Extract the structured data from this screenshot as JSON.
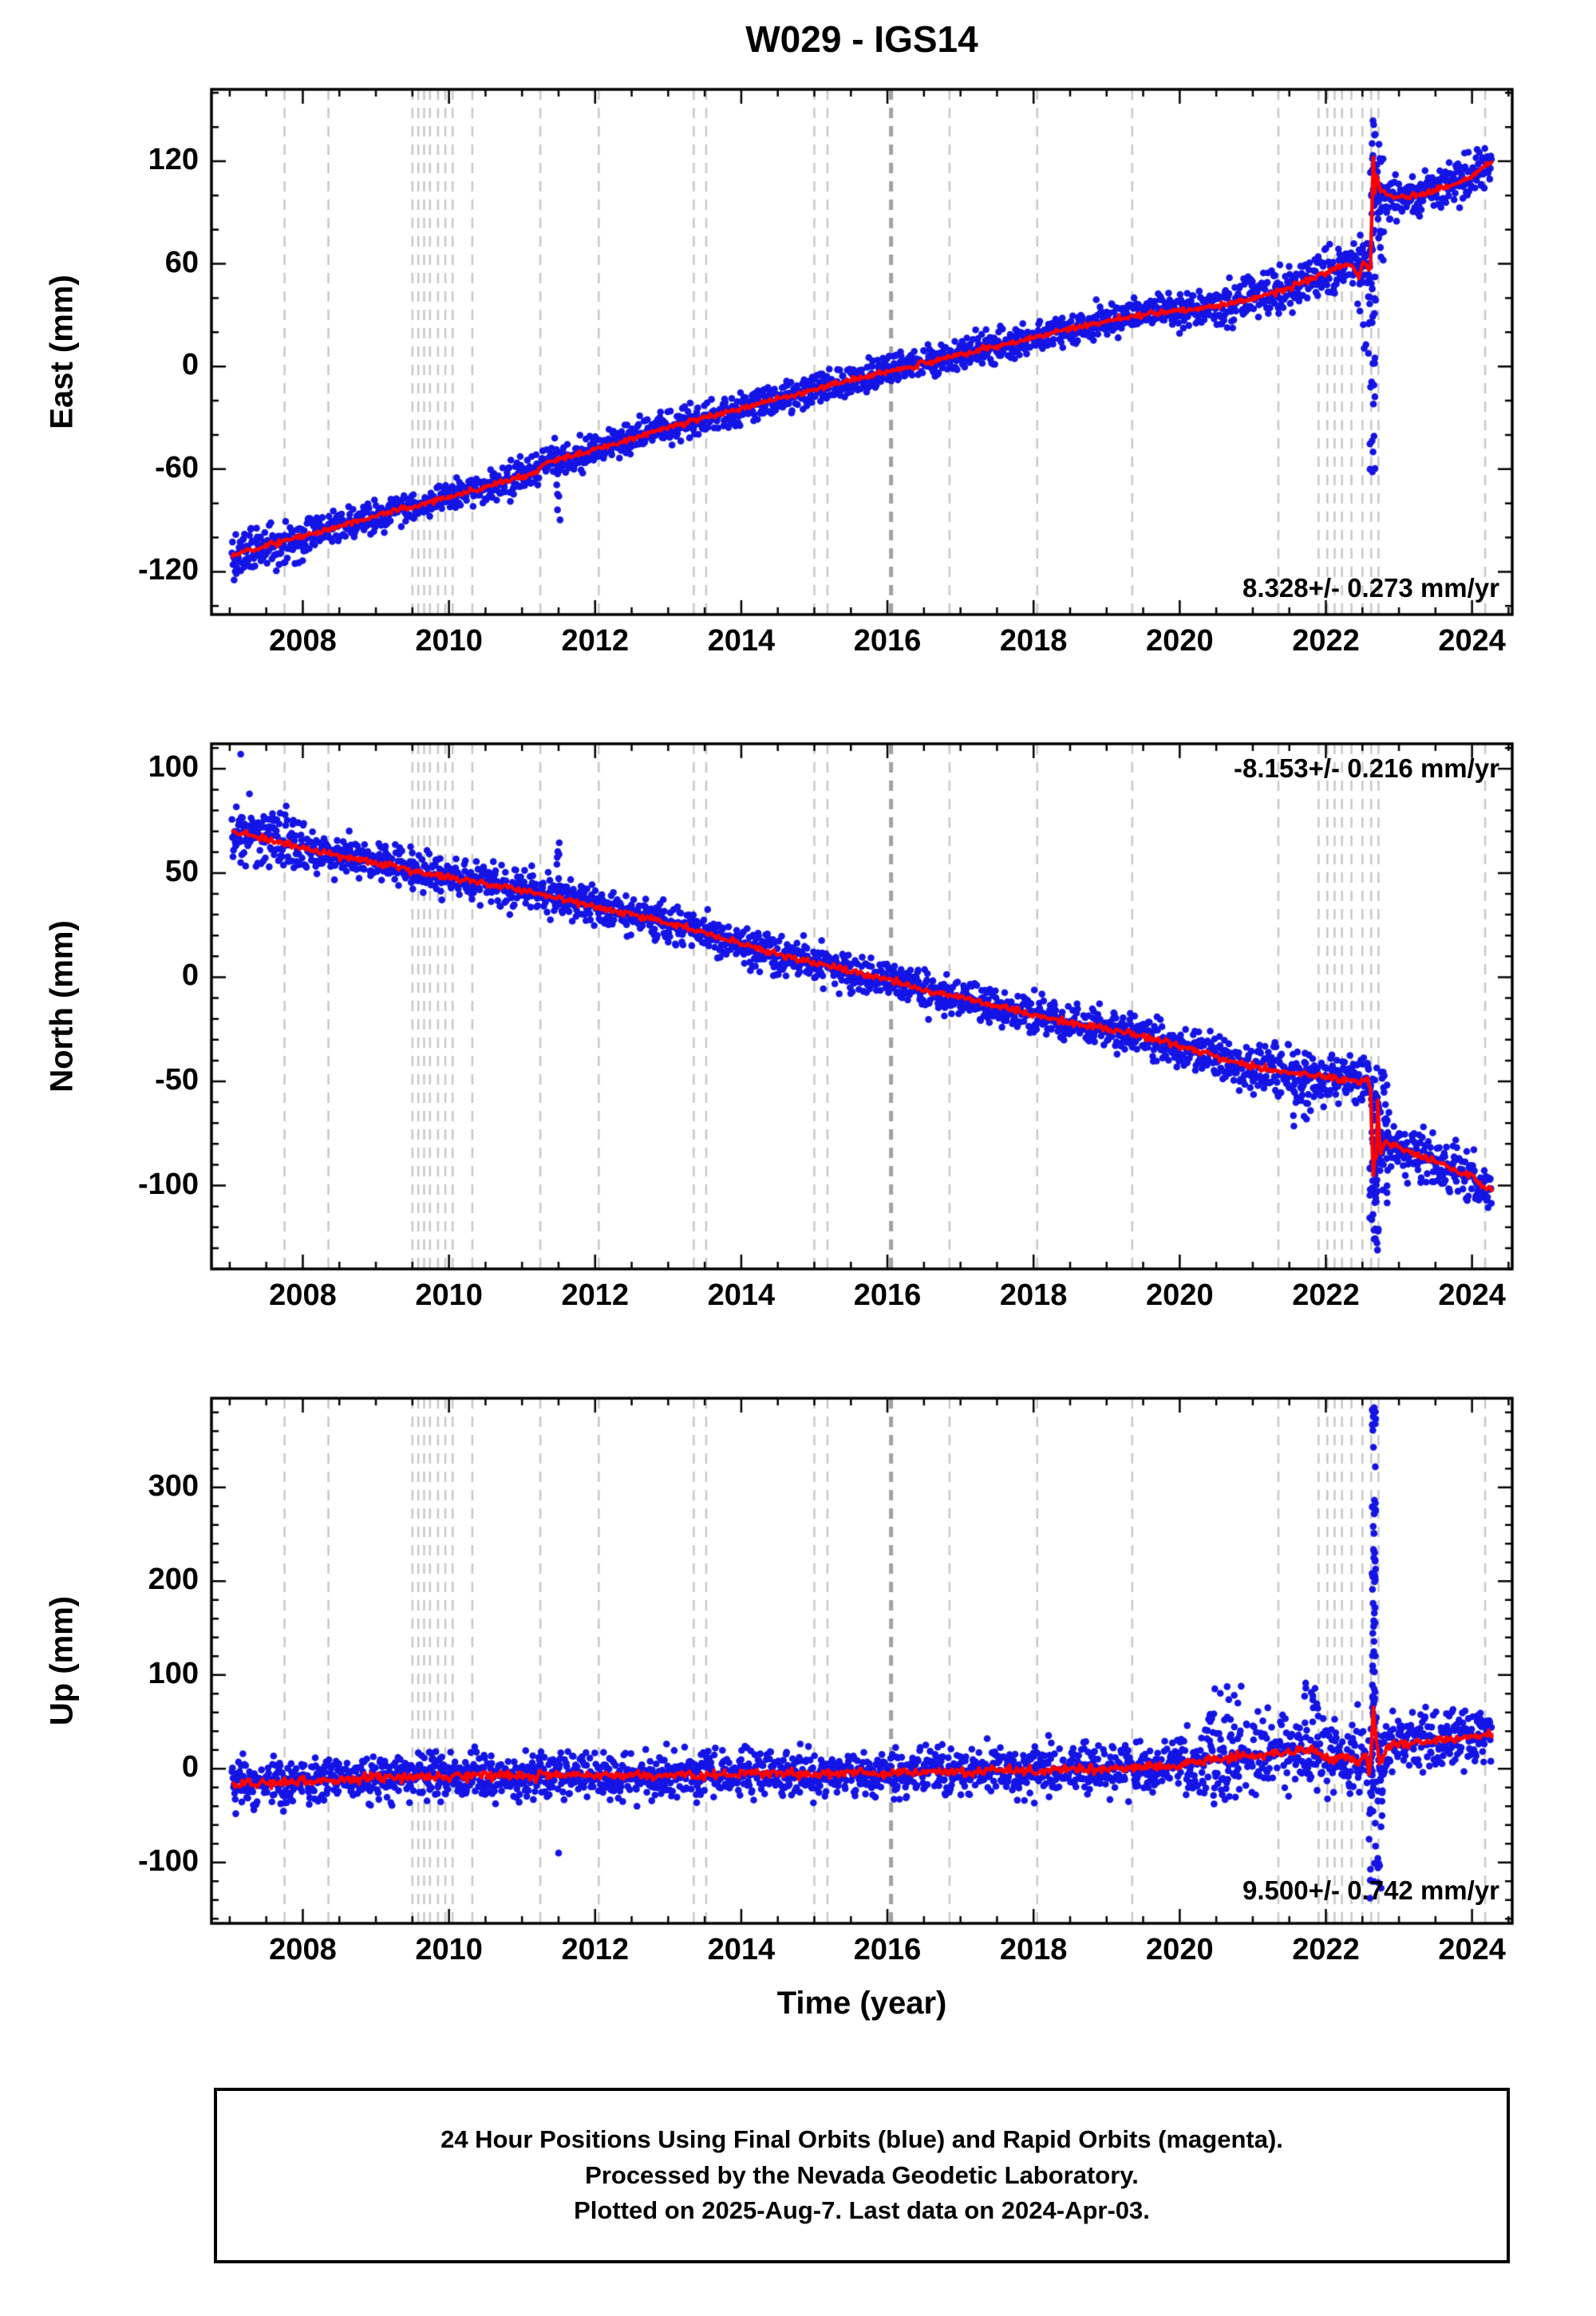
{
  "title": "W029 - IGS14",
  "xlabel": "Time (year)",
  "footer": {
    "line1": "24 Hour Positions Using Final Orbits (blue) and Rapid Orbits (magenta).",
    "line2": "Processed by the Nevada Geodetic Laboratory.",
    "line3": "Plotted on 2025-Aug-7. Last data on 2024-Apr-03."
  },
  "colors": {
    "final_orbit_points": "#1414e6",
    "trend_line": "#ff0000",
    "event_line": "#c8c8c8",
    "event_line_bold": "#a2a2a2",
    "axis": "#000000"
  },
  "x_axis": {
    "min": 2006.75,
    "max": 2024.55,
    "data_start": 2007.03,
    "data_end": 2024.27,
    "minor_step": 0.5,
    "major_ticks": [
      2008,
      2010,
      2012,
      2014,
      2016,
      2018,
      2020,
      2022,
      2024
    ]
  },
  "event_lines": [
    {
      "x": 2007.75
    },
    {
      "x": 2008.35
    },
    {
      "x": 2009.5
    },
    {
      "x": 2009.58
    },
    {
      "x": 2009.66
    },
    {
      "x": 2009.74
    },
    {
      "x": 2009.85
    },
    {
      "x": 2009.95
    },
    {
      "x": 2010.05
    },
    {
      "x": 2010.32
    },
    {
      "x": 2011.25
    },
    {
      "x": 2012.05
    },
    {
      "x": 2013.35
    },
    {
      "x": 2013.52
    },
    {
      "x": 2015.0
    },
    {
      "x": 2015.18
    },
    {
      "x": 2016.05,
      "bold": true
    },
    {
      "x": 2016.85
    },
    {
      "x": 2018.05
    },
    {
      "x": 2019.35
    },
    {
      "x": 2021.35
    },
    {
      "x": 2021.9
    },
    {
      "x": 2022.02
    },
    {
      "x": 2022.12
    },
    {
      "x": 2022.22
    },
    {
      "x": 2022.35
    },
    {
      "x": 2022.5
    },
    {
      "x": 2022.62
    },
    {
      "x": 2022.72
    },
    {
      "x": 2024.18
    }
  ],
  "chart_data": [
    {
      "type": "scatter",
      "component": "East",
      "ylabel": "East (mm)",
      "ylim": [
        -145,
        162
      ],
      "yticks": [
        -120,
        -60,
        0,
        60,
        120
      ],
      "ytick_minor_step": 20,
      "rate_label": "8.328+/- 0.273 mm/yr",
      "rate_label_corner": "bottom-right",
      "noise_sd": 4.5,
      "trend_wiggle": 1.0,
      "noise_boost": [
        {
          "from": 2007.0,
          "to": 2008.2,
          "factor": 1.5
        },
        {
          "from": 2020.5,
          "to": 2022.6,
          "factor": 1.5
        },
        {
          "from": 2022.75,
          "to": 2024.3,
          "factor": 1.4
        }
      ],
      "trend": [
        [
          2007.03,
          -110
        ],
        [
          2007.4,
          -106
        ],
        [
          2007.75,
          -102
        ],
        [
          2008.2,
          -97
        ],
        [
          2008.7,
          -91
        ],
        [
          2009.2,
          -85
        ],
        [
          2009.7,
          -80
        ],
        [
          2010.2,
          -74
        ],
        [
          2010.7,
          -68
        ],
        [
          2011.2,
          -62
        ],
        [
          2011.3,
          -56
        ],
        [
          2011.8,
          -51
        ],
        [
          2012.3,
          -45
        ],
        [
          2012.8,
          -38
        ],
        [
          2013.3,
          -32
        ],
        [
          2013.8,
          -27
        ],
        [
          2014.3,
          -21
        ],
        [
          2014.8,
          -16
        ],
        [
          2015.3,
          -10
        ],
        [
          2015.8,
          -5
        ],
        [
          2016.3,
          0
        ],
        [
          2016.8,
          5
        ],
        [
          2017.3,
          10
        ],
        [
          2017.8,
          15
        ],
        [
          2018.3,
          20
        ],
        [
          2018.8,
          25
        ],
        [
          2019.3,
          29
        ],
        [
          2019.8,
          32
        ],
        [
          2020.3,
          34
        ],
        [
          2020.8,
          38
        ],
        [
          2021.3,
          43
        ],
        [
          2021.8,
          51
        ],
        [
          2022.1,
          57
        ],
        [
          2022.35,
          60
        ],
        [
          2022.45,
          52
        ],
        [
          2022.52,
          63
        ],
        [
          2022.58,
          55
        ],
        [
          2022.62,
          60
        ],
        [
          2022.645,
          138
        ],
        [
          2022.66,
          95
        ],
        [
          2022.69,
          112
        ],
        [
          2022.75,
          103
        ],
        [
          2022.9,
          99
        ],
        [
          2023.2,
          100
        ],
        [
          2023.5,
          103
        ],
        [
          2023.8,
          107
        ],
        [
          2024.0,
          112
        ],
        [
          2024.27,
          119
        ]
      ],
      "outlier_clusters": [
        {
          "x0": 2011.47,
          "x1": 2011.53,
          "y0": -90,
          "y1": -58,
          "n": 8
        },
        {
          "x0": 2022.6,
          "x1": 2022.68,
          "y0": -62,
          "y1": 145,
          "n": 45
        },
        {
          "x0": 2022.45,
          "x1": 2022.6,
          "y0": 5,
          "y1": 80,
          "n": 20
        },
        {
          "x0": 2022.68,
          "x1": 2022.8,
          "y0": 60,
          "y1": 130,
          "n": 20
        }
      ],
      "outlier_points": []
    },
    {
      "type": "scatter",
      "component": "North",
      "ylabel": "North (mm)",
      "ylim": [
        -140,
        112
      ],
      "yticks": [
        -100,
        -50,
        0,
        50,
        100
      ],
      "ytick_minor_step": 10,
      "rate_label": "-8.153+/- 0.216 mm/yr",
      "rate_label_corner": "top-right",
      "noise_sd": 4.5,
      "trend_wiggle": 1.0,
      "noise_boost": [
        {
          "from": 2007.0,
          "to": 2008.2,
          "factor": 1.5
        },
        {
          "from": 2020.5,
          "to": 2022.6,
          "factor": 1.4
        },
        {
          "from": 2022.75,
          "to": 2024.3,
          "factor": 1.4
        }
      ],
      "trend": [
        [
          2007.03,
          70
        ],
        [
          2007.5,
          66
        ],
        [
          2008.0,
          62
        ],
        [
          2008.5,
          58
        ],
        [
          2009.0,
          55
        ],
        [
          2009.5,
          51
        ],
        [
          2010.0,
          48
        ],
        [
          2010.5,
          45
        ],
        [
          2011.0,
          42
        ],
        [
          2011.5,
          38
        ],
        [
          2012.0,
          34
        ],
        [
          2012.5,
          30
        ],
        [
          2013.0,
          26
        ],
        [
          2013.5,
          21
        ],
        [
          2014.0,
          16
        ],
        [
          2014.5,
          11
        ],
        [
          2015.0,
          7
        ],
        [
          2015.5,
          3
        ],
        [
          2016.0,
          -1
        ],
        [
          2016.5,
          -6
        ],
        [
          2017.0,
          -10
        ],
        [
          2017.5,
          -14
        ],
        [
          2018.0,
          -18
        ],
        [
          2018.5,
          -22
        ],
        [
          2019.0,
          -25
        ],
        [
          2019.5,
          -28
        ],
        [
          2020.0,
          -33
        ],
        [
          2020.5,
          -38
        ],
        [
          2021.0,
          -43
        ],
        [
          2021.4,
          -46
        ],
        [
          2021.8,
          -47
        ],
        [
          2022.2,
          -49
        ],
        [
          2022.5,
          -50
        ],
        [
          2022.58,
          -48
        ],
        [
          2022.62,
          -56
        ],
        [
          2022.645,
          -108
        ],
        [
          2022.66,
          -70
        ],
        [
          2022.68,
          -102
        ],
        [
          2022.71,
          -58
        ],
        [
          2022.74,
          -85
        ],
        [
          2022.8,
          -79
        ],
        [
          2023.0,
          -82
        ],
        [
          2023.3,
          -86
        ],
        [
          2023.7,
          -91
        ],
        [
          2024.0,
          -96
        ],
        [
          2024.27,
          -103
        ]
      ],
      "outlier_clusters": [
        {
          "x0": 2011.47,
          "x1": 2011.53,
          "y0": 36,
          "y1": 66,
          "n": 8
        },
        {
          "x0": 2022.6,
          "x1": 2022.72,
          "y0": -133,
          "y1": -35,
          "n": 45
        },
        {
          "x0": 2022.72,
          "x1": 2022.85,
          "y0": -110,
          "y1": -45,
          "n": 25
        },
        {
          "x0": 2021.55,
          "x1": 2021.8,
          "y0": -72,
          "y1": -50,
          "n": 10
        }
      ],
      "outlier_points": [
        [
          2007.15,
          107
        ]
      ]
    },
    {
      "type": "scatter",
      "component": "Up",
      "ylabel": "Up (mm)",
      "ylim": [
        -165,
        395
      ],
      "yticks": [
        -100,
        0,
        100,
        200,
        300
      ],
      "ytick_minor_step": 20,
      "rate_label": "9.500+/- 0.742 mm/yr",
      "rate_label_corner": "bottom-right",
      "noise_sd": 12,
      "trend_wiggle": 3.0,
      "noise_boost": [
        {
          "from": 2020.0,
          "to": 2022.6,
          "factor": 1.7
        },
        {
          "from": 2022.75,
          "to": 2024.3,
          "factor": 1.3
        }
      ],
      "trend": [
        [
          2007.03,
          -17
        ],
        [
          2007.5,
          -15
        ],
        [
          2008.0,
          -14
        ],
        [
          2008.5,
          -12
        ],
        [
          2009.0,
          -10
        ],
        [
          2009.5,
          -9
        ],
        [
          2010.0,
          -8
        ],
        [
          2010.5,
          -7
        ],
        [
          2011.0,
          -8
        ],
        [
          2011.5,
          -6
        ],
        [
          2012.0,
          -7
        ],
        [
          2012.5,
          -8
        ],
        [
          2013.0,
          -6
        ],
        [
          2013.5,
          -7
        ],
        [
          2014.0,
          -5
        ],
        [
          2014.5,
          -5
        ],
        [
          2015.0,
          -6
        ],
        [
          2015.5,
          -4
        ],
        [
          2016.0,
          -5
        ],
        [
          2016.5,
          -3
        ],
        [
          2017.0,
          -4
        ],
        [
          2017.5,
          -1
        ],
        [
          2018.0,
          -3
        ],
        [
          2018.5,
          1
        ],
        [
          2019.0,
          -1
        ],
        [
          2019.5,
          1
        ],
        [
          2020.0,
          4
        ],
        [
          2020.5,
          10
        ],
        [
          2021.0,
          14
        ],
        [
          2021.5,
          17
        ],
        [
          2021.85,
          21
        ],
        [
          2022.05,
          9
        ],
        [
          2022.25,
          14
        ],
        [
          2022.45,
          6
        ],
        [
          2022.55,
          18
        ],
        [
          2022.6,
          -12
        ],
        [
          2022.645,
          68
        ],
        [
          2022.68,
          38
        ],
        [
          2022.73,
          6
        ],
        [
          2022.85,
          24
        ],
        [
          2023.1,
          27
        ],
        [
          2023.5,
          29
        ],
        [
          2024.0,
          33
        ],
        [
          2024.27,
          38
        ]
      ],
      "outlier_clusters": [
        {
          "x0": 2022.63,
          "x1": 2022.68,
          "y0": 40,
          "y1": 385,
          "n": 55
        },
        {
          "x0": 2022.58,
          "x1": 2022.8,
          "y0": -145,
          "y1": 60,
          "n": 45
        },
        {
          "x0": 2021.7,
          "x1": 2021.9,
          "y0": 60,
          "y1": 100,
          "n": 10
        },
        {
          "x0": 2020.3,
          "x1": 2020.9,
          "y0": 50,
          "y1": 90,
          "n": 12
        }
      ],
      "outlier_points": [
        [
          2011.5,
          -90
        ]
      ]
    }
  ]
}
